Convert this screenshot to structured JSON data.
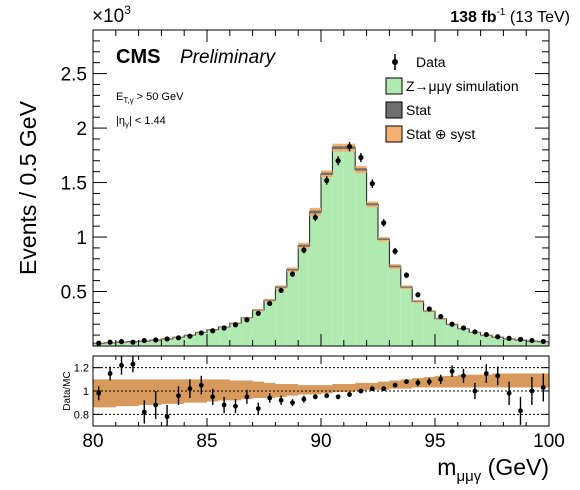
{
  "header": {
    "lumi_value": "138 fb",
    "lumi_exp": "-1",
    "lumi_energy": " (13 TeV)",
    "scale_base": "×10",
    "scale_exp": "3"
  },
  "labels": {
    "cms": "CMS",
    "preliminary": "Preliminary",
    "cut1_main": "E",
    "cut1_sub": "T,γ",
    "cut1_rest": " > 50 GeV",
    "cut2_open": "|η",
    "cut2_sub": "γ",
    "cut2_rest": "| < 1.44",
    "ylabel": "Events / 0.5 GeV",
    "ratio_ylabel": "Data/MC",
    "xlabel_main": "m",
    "xlabel_sub": "μμγ",
    "xlabel_unit": " (GeV)"
  },
  "legend": {
    "placement": "top-right",
    "items": [
      {
        "label": "Data",
        "kind": "marker",
        "color": "#000000"
      },
      {
        "label": "Z→μμγ simulation",
        "kind": "box",
        "color": "#b0eab0"
      },
      {
        "label": "Stat",
        "kind": "box",
        "color": "#707070"
      },
      {
        "label": "Stat ⊕ syst",
        "kind": "box",
        "color": "#f5b070"
      }
    ]
  },
  "chart_data": [
    {
      "type": "bar",
      "panel": "main",
      "xlim": [
        80,
        100
      ],
      "ylim": [
        0,
        2900
      ],
      "x_ticks": [
        "80",
        "85",
        "90",
        "95",
        "100"
      ],
      "y_ticks": [
        {
          "value": 500,
          "label": "0.5"
        },
        {
          "value": 1000,
          "label": "1"
        },
        {
          "value": 1500,
          "label": "1.5"
        },
        {
          "value": 2000,
          "label": "2"
        },
        {
          "value": 2500,
          "label": "2.5"
        }
      ],
      "bin_width": 0.5,
      "x": [
        80.25,
        80.75,
        81.25,
        81.75,
        82.25,
        82.75,
        83.25,
        83.75,
        84.25,
        84.75,
        85.25,
        85.75,
        86.25,
        86.75,
        87.25,
        87.75,
        88.25,
        88.75,
        89.25,
        89.75,
        90.25,
        90.75,
        91.25,
        91.75,
        92.25,
        92.75,
        93.25,
        93.75,
        94.25,
        94.75,
        95.25,
        95.75,
        96.25,
        96.75,
        97.25,
        97.75,
        98.25,
        98.75,
        99.25,
        99.75
      ],
      "series": [
        {
          "name": "Z→μμγ simulation",
          "values": [
            25,
            30,
            35,
            40,
            45,
            55,
            65,
            80,
            100,
            125,
            150,
            175,
            210,
            260,
            330,
            420,
            540,
            700,
            920,
            1230,
            1580,
            1820,
            1820,
            1620,
            1300,
            980,
            730,
            540,
            410,
            320,
            250,
            200,
            160,
            125,
            100,
            80,
            65,
            55,
            45,
            40
          ]
        },
        {
          "name": "Stat ⊕ syst",
          "band_frac": [
            0.03,
            0.03,
            0.03,
            0.03,
            0.03,
            0.03,
            0.03,
            0.03,
            0.03,
            0.03,
            0.03,
            0.03,
            0.03,
            0.03,
            0.03,
            0.03,
            0.03,
            0.03,
            0.03,
            0.03,
            0.02,
            0.02,
            0.02,
            0.02,
            0.02,
            0.02,
            0.03,
            0.03,
            0.03,
            0.03,
            0.03,
            0.03,
            0.03,
            0.03,
            0.03,
            0.03,
            0.03,
            0.03,
            0.03,
            0.03
          ]
        },
        {
          "name": "Data",
          "values": [
            25,
            35,
            40,
            35,
            50,
            55,
            65,
            75,
            90,
            120,
            140,
            165,
            195,
            240,
            300,
            390,
            510,
            660,
            880,
            1180,
            1520,
            1700,
            1830,
            1730,
            1490,
            1130,
            870,
            650,
            470,
            340,
            270,
            200,
            165,
            130,
            105,
            85,
            70,
            60,
            50,
            42
          ],
          "errors": [
            5,
            6,
            6,
            6,
            7,
            7,
            8,
            9,
            10,
            11,
            12,
            13,
            14,
            15,
            17,
            20,
            23,
            26,
            30,
            34,
            39,
            41,
            43,
            42,
            39,
            34,
            30,
            26,
            22,
            18,
            16,
            14,
            13,
            11,
            10,
            9,
            8,
            8,
            7,
            6
          ]
        }
      ]
    },
    {
      "type": "scatter",
      "panel": "ratio",
      "xlim": [
        80,
        100
      ],
      "ylim": [
        0.7,
        1.3
      ],
      "y_ticks": [
        {
          "value": 0.8,
          "label": "0.8"
        },
        {
          "value": 1.0,
          "label": "1"
        },
        {
          "value": 1.2,
          "label": "1.2"
        }
      ],
      "reference_lines": [
        0.8,
        1.0,
        1.2
      ],
      "x": [
        80.25,
        80.75,
        81.25,
        81.75,
        82.25,
        82.75,
        83.25,
        83.75,
        84.25,
        84.75,
        85.25,
        85.75,
        86.25,
        86.75,
        87.25,
        87.75,
        88.25,
        88.75,
        89.25,
        89.75,
        90.25,
        90.75,
        91.25,
        91.75,
        92.25,
        92.75,
        93.25,
        93.75,
        94.25,
        94.75,
        95.25,
        95.75,
        96.25,
        96.75,
        97.25,
        97.75,
        98.25,
        98.75,
        99.25,
        99.75
      ],
      "series": [
        {
          "name": "Data/MC",
          "values": [
            0.98,
            1.15,
            1.22,
            1.23,
            0.82,
            0.88,
            0.78,
            0.96,
            1.02,
            1.05,
            0.95,
            0.88,
            0.87,
            0.95,
            0.85,
            0.94,
            0.92,
            0.9,
            0.93,
            0.95,
            0.96,
            0.95,
            0.97,
            1.0,
            1.02,
            1.02,
            1.05,
            1.08,
            1.07,
            1.08,
            1.1,
            1.17,
            1.13,
            1.0,
            1.15,
            1.13,
            0.98,
            0.83,
            1.0,
            1.03
          ],
          "errors": [
            0.06,
            0.06,
            0.08,
            0.07,
            0.1,
            0.12,
            0.1,
            0.08,
            0.08,
            0.08,
            0.07,
            0.07,
            0.06,
            0.06,
            0.05,
            0.04,
            0.04,
            0.03,
            0.03,
            0.02,
            0.02,
            0.02,
            0.02,
            0.02,
            0.02,
            0.02,
            0.02,
            0.02,
            0.03,
            0.03,
            0.04,
            0.05,
            0.06,
            0.07,
            0.08,
            0.08,
            0.1,
            0.12,
            0.12,
            0.12
          ]
        },
        {
          "name": "Stat ⊕ syst",
          "band_lo": [
            0.86,
            0.86,
            0.87,
            0.87,
            0.88,
            0.88,
            0.89,
            0.89,
            0.9,
            0.9,
            0.91,
            0.92,
            0.92,
            0.93,
            0.94,
            0.94,
            0.95,
            0.96,
            0.97,
            0.97,
            0.98,
            0.99,
            0.99,
            1.0,
            1.01,
            1.01,
            1.02,
            1.02,
            1.03,
            1.03,
            1.03,
            1.03,
            1.03,
            1.03,
            1.03,
            1.03,
            1.03,
            1.03,
            1.03,
            1.03
          ],
          "band_hi": [
            1.1,
            1.1,
            1.1,
            1.1,
            1.1,
            1.1,
            1.1,
            1.1,
            1.1,
            1.1,
            1.1,
            1.1,
            1.09,
            1.09,
            1.08,
            1.07,
            1.06,
            1.06,
            1.05,
            1.05,
            1.05,
            1.06,
            1.06,
            1.07,
            1.07,
            1.08,
            1.09,
            1.1,
            1.11,
            1.12,
            1.13,
            1.13,
            1.14,
            1.14,
            1.14,
            1.15,
            1.15,
            1.15,
            1.15,
            1.15
          ]
        }
      ]
    }
  ]
}
